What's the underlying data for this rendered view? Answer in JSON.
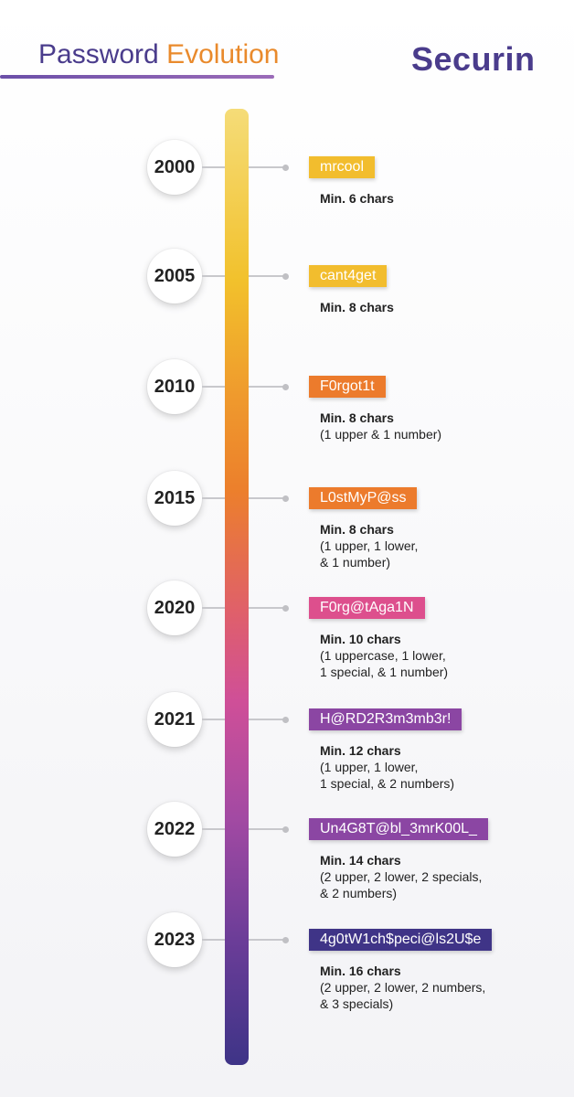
{
  "header": {
    "title_part1": "Password",
    "title_part2": "Evolution",
    "brand": "Securin"
  },
  "colors": {
    "accent_purple": "#4a3c8c",
    "accent_orange": "#e98a2c"
  },
  "timeline": [
    {
      "year": "2000",
      "password": "mrcool",
      "tag_color": "#f2bd2e",
      "requirement": "Min. 6 chars",
      "detail_lines": []
    },
    {
      "year": "2005",
      "password": "cant4get",
      "tag_color": "#f2bd2e",
      "requirement": "Min. 8 chars",
      "detail_lines": []
    },
    {
      "year": "2010",
      "password": "F0rgot1t",
      "tag_color": "#ec7b2c",
      "requirement": "Min. 8 chars",
      "detail_lines": [
        "(1 upper & 1 number)"
      ]
    },
    {
      "year": "2015",
      "password": "L0stMyP@ss",
      "tag_color": "#ec7b2c",
      "requirement": "Min. 8 chars",
      "detail_lines": [
        "(1 upper, 1 lower,",
        "& 1 number)"
      ]
    },
    {
      "year": "2020",
      "password": "F0rg@tAga1N",
      "tag_color": "#dd4f8d",
      "requirement": "Min. 10 chars",
      "detail_lines": [
        "(1 uppercase, 1 lower,",
        "1 special, & 1 number)"
      ]
    },
    {
      "year": "2021",
      "password": "H@RD2R3m3mb3r!",
      "tag_color": "#8b46a3",
      "requirement": "Min. 12 chars",
      "detail_lines": [
        "(1 upper, 1 lower,",
        "1 special, & 2 numbers)"
      ]
    },
    {
      "year": "2022",
      "password": "Un4G8T@bl_3mrK00L_",
      "tag_color": "#8b46a3",
      "requirement": "Min. 14 chars",
      "detail_lines": [
        "(2 upper, 2 lower, 2 specials,",
        "& 2 numbers)"
      ]
    },
    {
      "year": "2023",
      "password": "4g0tW1ch$peci@ls2U$e",
      "tag_color": "#3f3487",
      "requirement": "Min. 16 chars",
      "detail_lines": [
        "(2 upper, 2 lower, 2 numbers,",
        "& 3 specials)"
      ]
    }
  ]
}
